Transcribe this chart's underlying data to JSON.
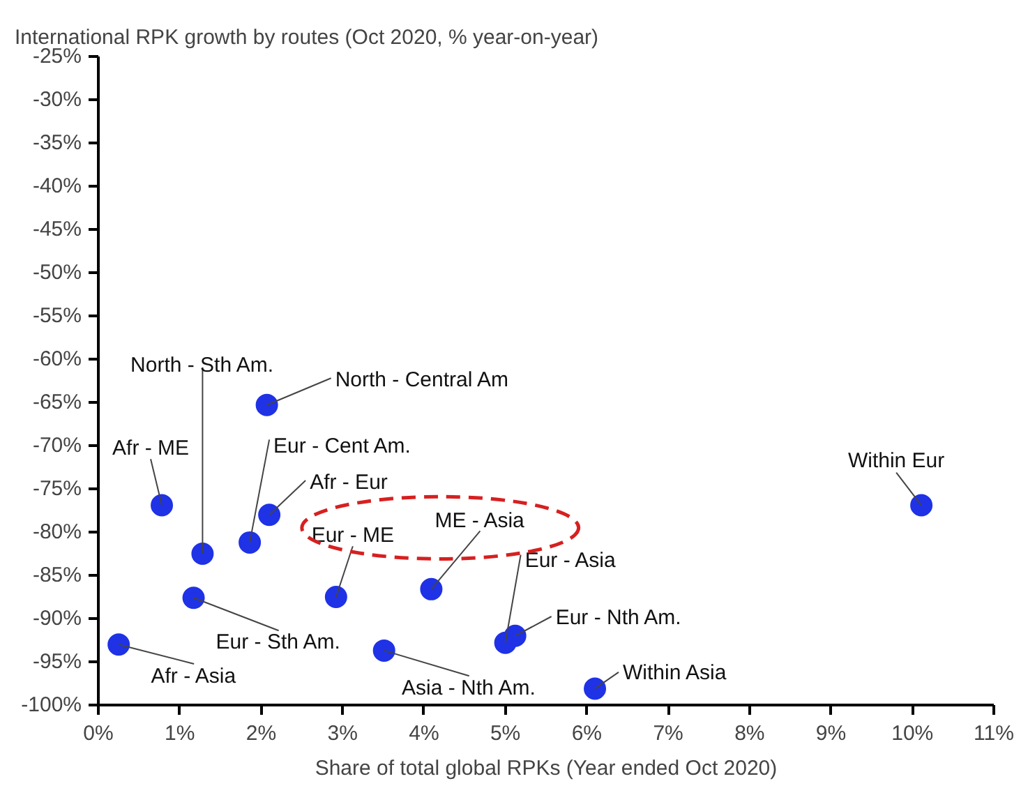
{
  "chart_data": {
    "type": "scatter",
    "title": "International RPK growth by routes (Oct 2020, % year-on-year)",
    "xlabel": "Share of total global RPKs (Year ended Oct 2020)",
    "x": [
      2.07,
      0.78,
      2.1,
      1.28,
      1.86,
      2.92,
      4.09,
      1.17,
      0.25,
      3.51,
      5.0,
      5.12,
      6.1,
      10.11
    ],
    "series": [
      {
        "color": "#1f32e6",
        "values": [
          -65.3,
          -76.9,
          -78.0,
          -82.5,
          -81.2,
          -87.5,
          -86.6,
          -87.6,
          -93.0,
          -93.7,
          -92.8,
          -92.0,
          -98.1,
          -76.9
        ]
      }
    ],
    "annotations": [
      {
        "text": "North - Central Am",
        "x": 2.07,
        "y": -65.3
      },
      {
        "text": "Afr - ME",
        "x": 0.78,
        "y": -76.9
      },
      {
        "text": "Afr - Eur",
        "x": 2.1,
        "y": -78.0
      },
      {
        "text": "North - Sth Am.",
        "x": 1.28,
        "y": -82.5
      },
      {
        "text": "Eur - Cent Am.",
        "x": 1.86,
        "y": -81.2
      },
      {
        "text": "Eur - ME",
        "x": 2.92,
        "y": -87.5
      },
      {
        "text": "ME - Asia",
        "x": 4.09,
        "y": -86.6
      },
      {
        "text": "Eur - Sth Am.",
        "x": 1.17,
        "y": -87.6
      },
      {
        "text": "Afr - Asia",
        "x": 0.25,
        "y": -93.0
      },
      {
        "text": "Asia - Nth Am.",
        "x": 3.51,
        "y": -93.7
      },
      {
        "text": "Eur - Asia",
        "x": 5.0,
        "y": -92.8
      },
      {
        "text": "Eur - Nth Am.",
        "x": 5.12,
        "y": -92.0
      },
      {
        "text": "Within Asia",
        "x": 6.1,
        "y": -98.1
      },
      {
        "text": "Within Eur",
        "x": 10.11,
        "y": -76.9
      }
    ],
    "xlim": [
      0,
      11
    ],
    "xticks": [
      {
        "value": 0,
        "label": "0%"
      },
      {
        "value": 1,
        "label": "1%"
      },
      {
        "value": 2,
        "label": "2%"
      },
      {
        "value": 3,
        "label": "3%"
      },
      {
        "value": 4,
        "label": "4%"
      },
      {
        "value": 5,
        "label": "5%"
      },
      {
        "value": 6,
        "label": "6%"
      },
      {
        "value": 7,
        "label": "7%"
      },
      {
        "value": 8,
        "label": "8%"
      },
      {
        "value": 9,
        "label": "9%"
      },
      {
        "value": 10,
        "label": "10%"
      },
      {
        "value": 11,
        "label": "11%"
      }
    ],
    "ylim": [
      -100,
      -25
    ],
    "yticks": [
      {
        "value": -100,
        "label": "-100%"
      },
      {
        "value": -95,
        "label": "-95%"
      },
      {
        "value": -90,
        "label": "-90%"
      },
      {
        "value": -85,
        "label": "-85%"
      },
      {
        "value": -80,
        "label": "-80%"
      },
      {
        "value": -75,
        "label": "-75%"
      },
      {
        "value": -70,
        "label": "-70%"
      },
      {
        "value": -65,
        "label": "-65%"
      },
      {
        "value": -60,
        "label": "-60%"
      },
      {
        "value": -55,
        "label": "-55%"
      },
      {
        "value": -50,
        "label": "-50%"
      },
      {
        "value": -45,
        "label": "-45%"
      },
      {
        "value": -40,
        "label": "-40%"
      },
      {
        "value": -35,
        "label": "-35%"
      },
      {
        "value": -30,
        "label": "-30%"
      },
      {
        "value": -25,
        "label": "-25%"
      }
    ],
    "grid": false,
    "marker": "circle"
  }
}
